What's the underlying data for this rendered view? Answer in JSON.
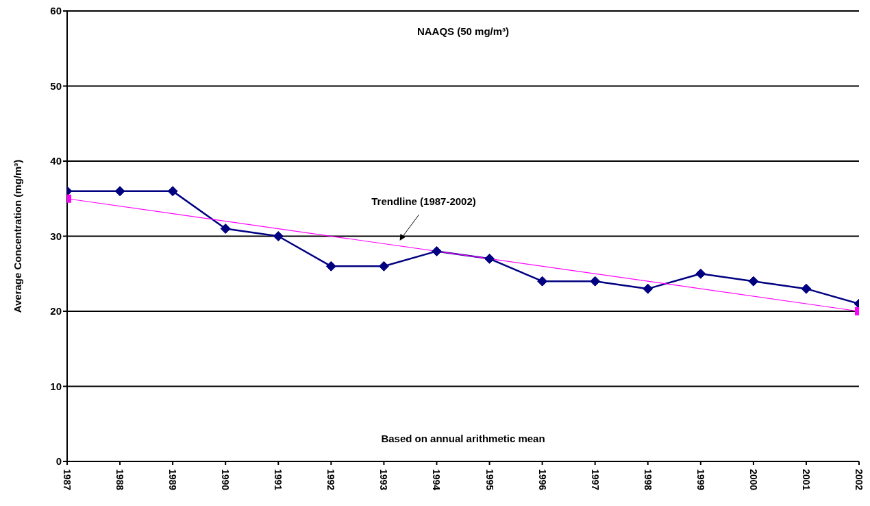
{
  "chart_data": {
    "type": "line",
    "ylabel": "Average Concentration (mg/m³)",
    "x": [
      1987,
      1988,
      1989,
      1990,
      1991,
      1992,
      1993,
      1994,
      1995,
      1996,
      1997,
      1998,
      1999,
      2000,
      2001,
      2002
    ],
    "xlim": [
      1987,
      2002
    ],
    "xticks": [
      1987,
      1988,
      1989,
      1990,
      1991,
      1992,
      1993,
      1994,
      1995,
      1996,
      1997,
      1998,
      1999,
      2000,
      2001,
      2002
    ],
    "ylim": [
      0,
      60
    ],
    "yticks": [
      0,
      10,
      20,
      30,
      40,
      50,
      60
    ],
    "grid": "y",
    "series": [
      {
        "color": "#000080",
        "marker": "diamond",
        "values": [
          36,
          36,
          36,
          31,
          30,
          26,
          26,
          28,
          27,
          24,
          24,
          23,
          25,
          24,
          23,
          21
        ]
      },
      {
        "type": "line",
        "color": "#ff00ff",
        "marker": "square",
        "x": [
          1987,
          2002
        ],
        "values": [
          35,
          20
        ]
      }
    ],
    "annotations": [
      "NAAQS (50 mg/m³)",
      "Trendline (1987-2002)",
      "Based on annual arithmetic mean"
    ]
  }
}
